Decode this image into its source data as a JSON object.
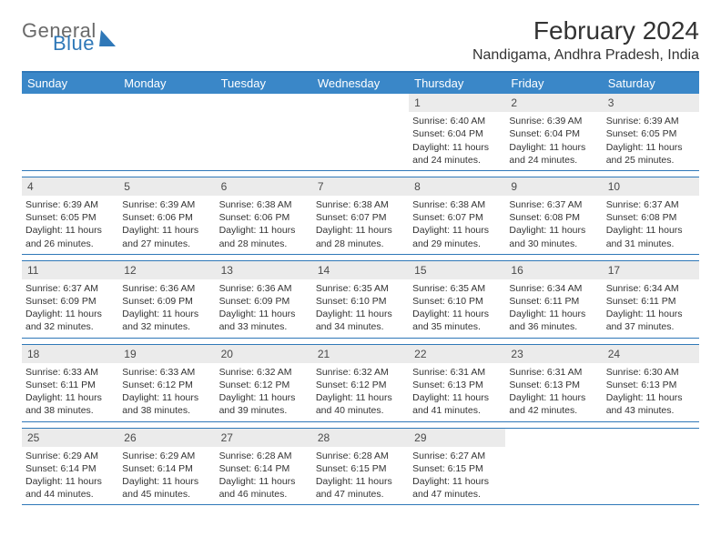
{
  "brand": {
    "word1": "General",
    "word2": "Blue"
  },
  "title": "February 2024",
  "location": "Nandigama, Andhra Pradesh, India",
  "colors": {
    "accent": "#2f78b8",
    "header_bg": "#3a87c8",
    "row_band": "#ebebeb",
    "text": "#333333",
    "logo_gray": "#6a6a6a"
  },
  "dow": [
    "Sunday",
    "Monday",
    "Tuesday",
    "Wednesday",
    "Thursday",
    "Friday",
    "Saturday"
  ],
  "weeks": [
    [
      null,
      null,
      null,
      null,
      {
        "n": "1",
        "sr": "6:40 AM",
        "ss": "6:04 PM",
        "dl": "11 hours and 24 minutes."
      },
      {
        "n": "2",
        "sr": "6:39 AM",
        "ss": "6:04 PM",
        "dl": "11 hours and 24 minutes."
      },
      {
        "n": "3",
        "sr": "6:39 AM",
        "ss": "6:05 PM",
        "dl": "11 hours and 25 minutes."
      }
    ],
    [
      {
        "n": "4",
        "sr": "6:39 AM",
        "ss": "6:05 PM",
        "dl": "11 hours and 26 minutes."
      },
      {
        "n": "5",
        "sr": "6:39 AM",
        "ss": "6:06 PM",
        "dl": "11 hours and 27 minutes."
      },
      {
        "n": "6",
        "sr": "6:38 AM",
        "ss": "6:06 PM",
        "dl": "11 hours and 28 minutes."
      },
      {
        "n": "7",
        "sr": "6:38 AM",
        "ss": "6:07 PM",
        "dl": "11 hours and 28 minutes."
      },
      {
        "n": "8",
        "sr": "6:38 AM",
        "ss": "6:07 PM",
        "dl": "11 hours and 29 minutes."
      },
      {
        "n": "9",
        "sr": "6:37 AM",
        "ss": "6:08 PM",
        "dl": "11 hours and 30 minutes."
      },
      {
        "n": "10",
        "sr": "6:37 AM",
        "ss": "6:08 PM",
        "dl": "11 hours and 31 minutes."
      }
    ],
    [
      {
        "n": "11",
        "sr": "6:37 AM",
        "ss": "6:09 PM",
        "dl": "11 hours and 32 minutes."
      },
      {
        "n": "12",
        "sr": "6:36 AM",
        "ss": "6:09 PM",
        "dl": "11 hours and 32 minutes."
      },
      {
        "n": "13",
        "sr": "6:36 AM",
        "ss": "6:09 PM",
        "dl": "11 hours and 33 minutes."
      },
      {
        "n": "14",
        "sr": "6:35 AM",
        "ss": "6:10 PM",
        "dl": "11 hours and 34 minutes."
      },
      {
        "n": "15",
        "sr": "6:35 AM",
        "ss": "6:10 PM",
        "dl": "11 hours and 35 minutes."
      },
      {
        "n": "16",
        "sr": "6:34 AM",
        "ss": "6:11 PM",
        "dl": "11 hours and 36 minutes."
      },
      {
        "n": "17",
        "sr": "6:34 AM",
        "ss": "6:11 PM",
        "dl": "11 hours and 37 minutes."
      }
    ],
    [
      {
        "n": "18",
        "sr": "6:33 AM",
        "ss": "6:11 PM",
        "dl": "11 hours and 38 minutes."
      },
      {
        "n": "19",
        "sr": "6:33 AM",
        "ss": "6:12 PM",
        "dl": "11 hours and 38 minutes."
      },
      {
        "n": "20",
        "sr": "6:32 AM",
        "ss": "6:12 PM",
        "dl": "11 hours and 39 minutes."
      },
      {
        "n": "21",
        "sr": "6:32 AM",
        "ss": "6:12 PM",
        "dl": "11 hours and 40 minutes."
      },
      {
        "n": "22",
        "sr": "6:31 AM",
        "ss": "6:13 PM",
        "dl": "11 hours and 41 minutes."
      },
      {
        "n": "23",
        "sr": "6:31 AM",
        "ss": "6:13 PM",
        "dl": "11 hours and 42 minutes."
      },
      {
        "n": "24",
        "sr": "6:30 AM",
        "ss": "6:13 PM",
        "dl": "11 hours and 43 minutes."
      }
    ],
    [
      {
        "n": "25",
        "sr": "6:29 AM",
        "ss": "6:14 PM",
        "dl": "11 hours and 44 minutes."
      },
      {
        "n": "26",
        "sr": "6:29 AM",
        "ss": "6:14 PM",
        "dl": "11 hours and 45 minutes."
      },
      {
        "n": "27",
        "sr": "6:28 AM",
        "ss": "6:14 PM",
        "dl": "11 hours and 46 minutes."
      },
      {
        "n": "28",
        "sr": "6:28 AM",
        "ss": "6:15 PM",
        "dl": "11 hours and 47 minutes."
      },
      {
        "n": "29",
        "sr": "6:27 AM",
        "ss": "6:15 PM",
        "dl": "11 hours and 47 minutes."
      },
      null,
      null
    ]
  ],
  "labels": {
    "sunrise": "Sunrise: ",
    "sunset": "Sunset: ",
    "daylight": "Daylight: "
  }
}
